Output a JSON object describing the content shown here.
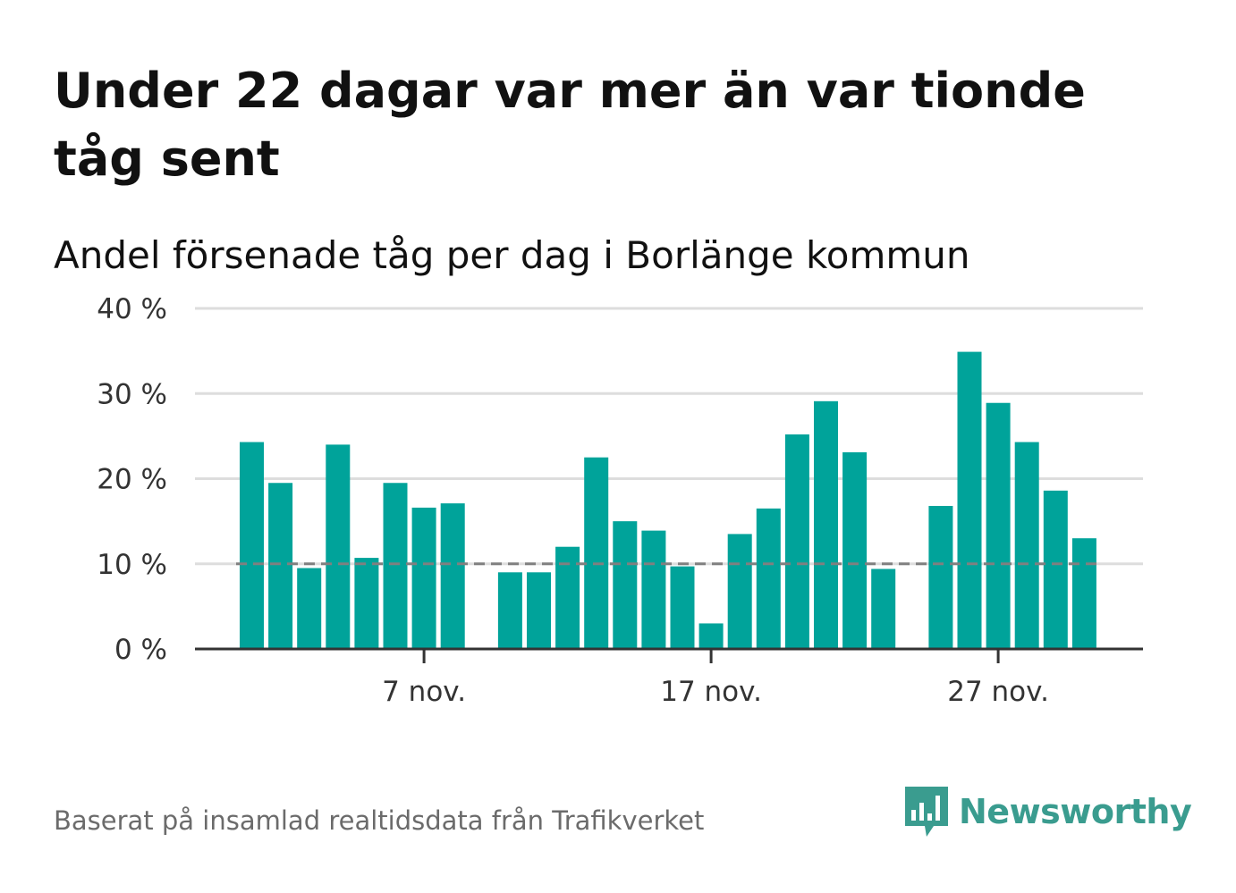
{
  "title": "Under 22 dagar var mer än var tionde tåg sent",
  "subtitle": "Andel försenade tåg per dag i Borlänge kommun",
  "source": "Baserat på insamlad realtidsdata från Trafikverket",
  "brand": {
    "name": "Newsworthy",
    "color": "#3a9c8f",
    "icon": "bar-chart-speech-bubble-icon"
  },
  "colors": {
    "bar": "#00a39a",
    "reference_line": "#808080",
    "grid": "#dddddd",
    "axis": "#333333"
  },
  "chart_data": {
    "type": "bar",
    "title": "Andel försenade tåg per dag i Borlänge kommun",
    "xlabel": "",
    "ylabel": "",
    "ylim": [
      0,
      40
    ],
    "yticks": [
      0,
      10,
      20,
      30,
      40
    ],
    "ytick_labels": [
      "0 %",
      "10 %",
      "20 %",
      "30 %",
      "40 %"
    ],
    "xticks": [
      {
        "day": 7,
        "label": "7 nov."
      },
      {
        "day": 17,
        "label": "17 nov."
      },
      {
        "day": 27,
        "label": "27 nov."
      }
    ],
    "grid": true,
    "reference_line": 10,
    "days": [
      1,
      2,
      3,
      4,
      5,
      6,
      7,
      8,
      9,
      10,
      11,
      12,
      13,
      14,
      15,
      16,
      17,
      18,
      19,
      20,
      21,
      22,
      23,
      24,
      25,
      26,
      27,
      28,
      29,
      30
    ],
    "values": [
      24.3,
      19.5,
      9.5,
      24.0,
      10.7,
      19.5,
      16.6,
      17.1,
      null,
      9.0,
      9.0,
      12.0,
      22.5,
      15.0,
      13.9,
      9.7,
      3.0,
      13.5,
      16.5,
      25.2,
      29.1,
      23.1,
      9.4,
      null,
      16.8,
      34.9,
      28.9,
      24.3,
      18.6,
      13.0
    ]
  }
}
